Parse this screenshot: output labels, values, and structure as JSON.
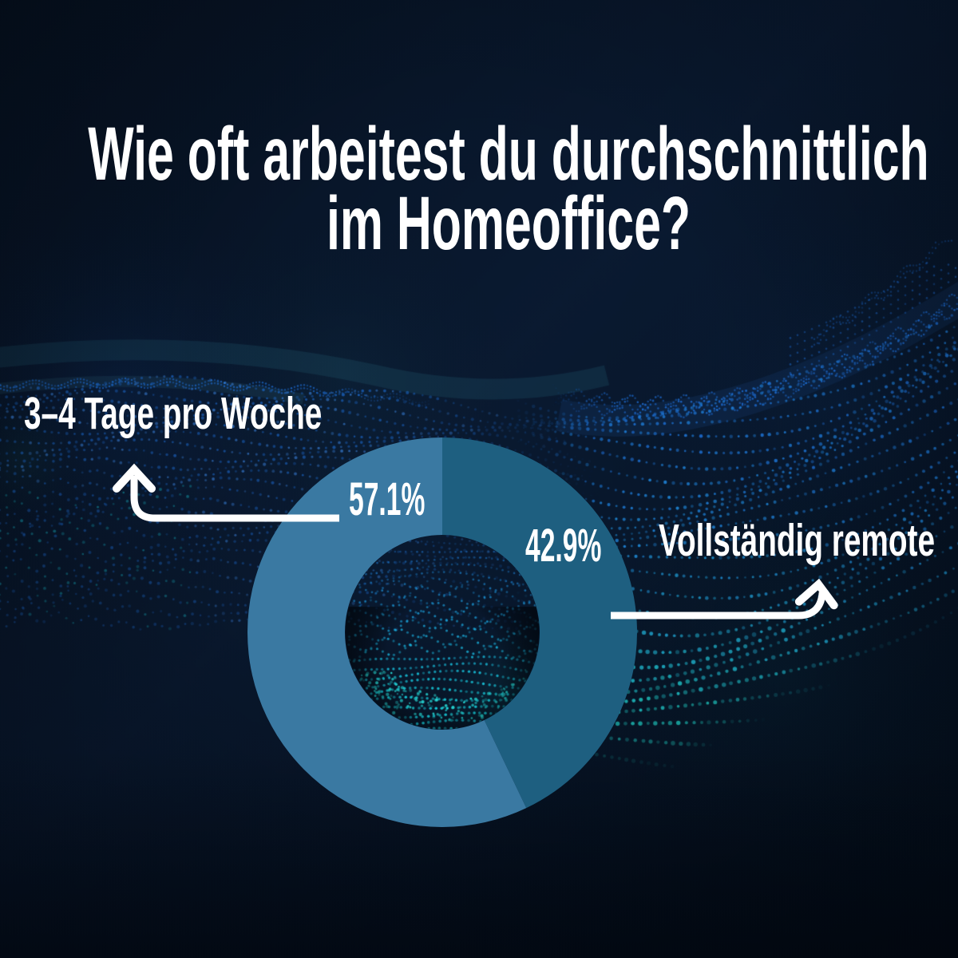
{
  "title": {
    "line1": "Wie oft arbeitest du durchschnittlich",
    "line2": "im Homeoffice?",
    "full": "Wie oft arbeitest du durchschnittlich im Homeoffice?"
  },
  "chart_data": {
    "type": "pie",
    "variant": "donut",
    "title": "Wie oft arbeitest du durchschnittlich im Homeoffice?",
    "unit": "%",
    "start_angle_deg": 0,
    "direction": "clockwise",
    "slices": [
      {
        "label": "Vollständig remote",
        "value": 42.9,
        "display": "42.9%",
        "color": "#1e5f80"
      },
      {
        "label": "3–4 Tage pro Woche",
        "value": 57.1,
        "display": "57.1%",
        "color": "#3a79a2"
      }
    ],
    "legend": "callout arrows pointing from percentage values to category labels"
  },
  "style": {
    "background_top": "#061120",
    "background_mid": "#0a1a31",
    "background_bottom": "#04101e",
    "text_color": "#ffffff",
    "callout_color": "#ffffff",
    "particle_blue": "#1e6fd9",
    "particle_blue_light": "#3f8df0",
    "particle_cyan": "#21dcd2",
    "particle_teal": "#17b6c9"
  }
}
